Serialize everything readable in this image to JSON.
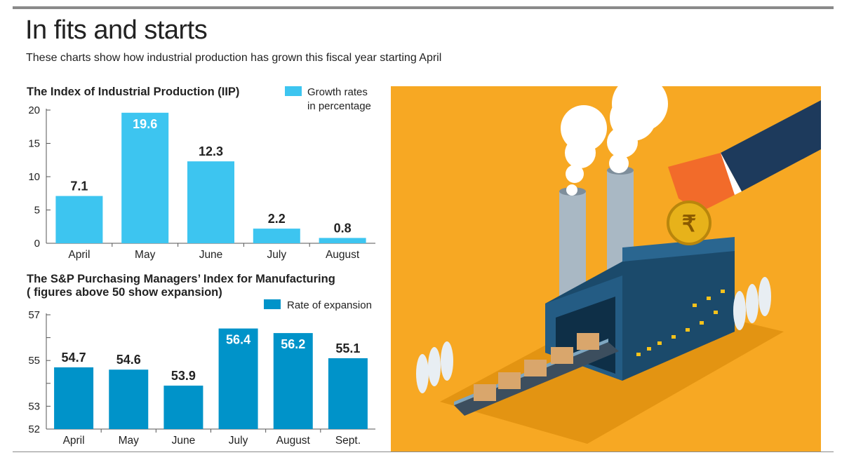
{
  "header": {
    "title": "In fits and starts",
    "subtitle": "These charts show how industrial production has grown this fiscal year starting April"
  },
  "chart_data": [
    {
      "type": "bar",
      "title": "The Index of Industrial Production (IIP)",
      "legend": [
        "Growth rates",
        "in percentage"
      ],
      "legend_placement": "top-right",
      "categories": [
        "April",
        "May",
        "June",
        "July",
        "August"
      ],
      "values": [
        7.1,
        19.6,
        12.3,
        2.2,
        0.8
      ],
      "value_labels": [
        "7.1",
        "19.6",
        "12.3",
        "2.2",
        "0.8"
      ],
      "ylim": [
        0,
        20
      ],
      "yticks": [
        "0",
        "5",
        "10",
        "15",
        "20"
      ],
      "color": "#3DC5F0",
      "grid": false
    },
    {
      "type": "bar",
      "title": "The S&P Purchasing Managers’ Index for Manufacturing",
      "subtitle": "( figures above 50 show expansion)",
      "legend": [
        "Rate of expansion"
      ],
      "legend_placement": "top-right",
      "categories": [
        "April",
        "May",
        "June",
        "July",
        "August",
        "Sept."
      ],
      "values": [
        54.7,
        54.6,
        53.9,
        56.4,
        56.2,
        55.1
      ],
      "value_labels": [
        "54.7",
        "54.6",
        "53.9",
        "56.4",
        "56.2",
        "55.1"
      ],
      "ylim": [
        52,
        57
      ],
      "yticks": [
        "52",
        "53",
        "55",
        "57"
      ],
      "color": "#0093C9",
      "grid": false
    }
  ],
  "illustration": {
    "description_icon": "factory-coin-illustration",
    "background": "#F7A823"
  }
}
